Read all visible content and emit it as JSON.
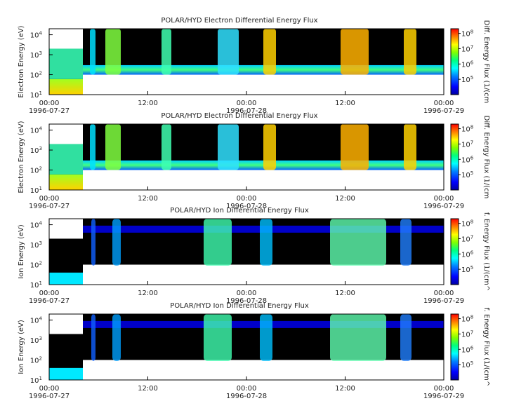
{
  "x_ticks": [
    {
      "time": "00:00",
      "date": "1996-07-27"
    },
    {
      "time": "12:00",
      "date": ""
    },
    {
      "time": "00:00",
      "date": "1996-07-28"
    },
    {
      "time": "12:00",
      "date": ""
    },
    {
      "time": "00:00",
      "date": "1996-07-29"
    }
  ],
  "y_ticks": [
    "10",
    "10",
    "10",
    "10"
  ],
  "y_tick_exps": [
    "1",
    "2",
    "3",
    "4"
  ],
  "colorbar_ticks": [
    "10",
    "10",
    "10",
    "10"
  ],
  "colorbar_tick_exps": [
    "5",
    "6",
    "7",
    "8"
  ],
  "colors": {
    "background_fill": "#000000",
    "scale": [
      "#0000a0",
      "#0000ff",
      "#0080ff",
      "#00ffff",
      "#00ff80",
      "#80ff00",
      "#ffff00",
      "#ff8000",
      "#ff0000"
    ]
  },
  "chart_data": [
    {
      "type": "heatmap",
      "title": "POLAR/HYD  Electron Differential Energy Flux",
      "ylabel": "Electron Energy (eV)",
      "colorbar_label": "Diff. Energy Flux (1/(cm",
      "y_scale": "log",
      "ylim": [
        10,
        20000
      ],
      "xlim": [
        "1996-07-27 00:00",
        "1996-07-29 00:00"
      ],
      "colorbar_range": [
        10000,
        200000000
      ]
    },
    {
      "type": "heatmap",
      "title": "POLAR/HYD  Electron Differential Energy Flux",
      "ylabel": "Electron Energy (eV)",
      "colorbar_label": "Diff. Energy Flux (1/(cm",
      "y_scale": "log",
      "ylim": [
        10,
        20000
      ],
      "xlim": [
        "1996-07-27 00:00",
        "1996-07-29 00:00"
      ],
      "colorbar_range": [
        10000,
        200000000
      ]
    },
    {
      "type": "heatmap",
      "title": "POLAR/HYD  Ion Differential Energy Flux",
      "ylabel": "Ion Energy (eV)",
      "colorbar_label": "f. Energy Flux (1/(cm^",
      "y_scale": "log",
      "ylim": [
        10,
        20000
      ],
      "xlim": [
        "1996-07-27 00:00",
        "1996-07-29 00:00"
      ],
      "colorbar_range": [
        10000,
        200000000
      ]
    },
    {
      "type": "heatmap",
      "title": "POLAR/HYD  Ion Differential Energy Flux",
      "ylabel": "Ion Energy (eV)",
      "colorbar_label": "f. Energy Flux (1/(cm^",
      "y_scale": "log",
      "ylim": [
        10,
        20000
      ],
      "xlim": [
        "1996-07-27 00:00",
        "1996-07-29 00:00"
      ],
      "colorbar_range": [
        10000,
        200000000
      ]
    }
  ]
}
